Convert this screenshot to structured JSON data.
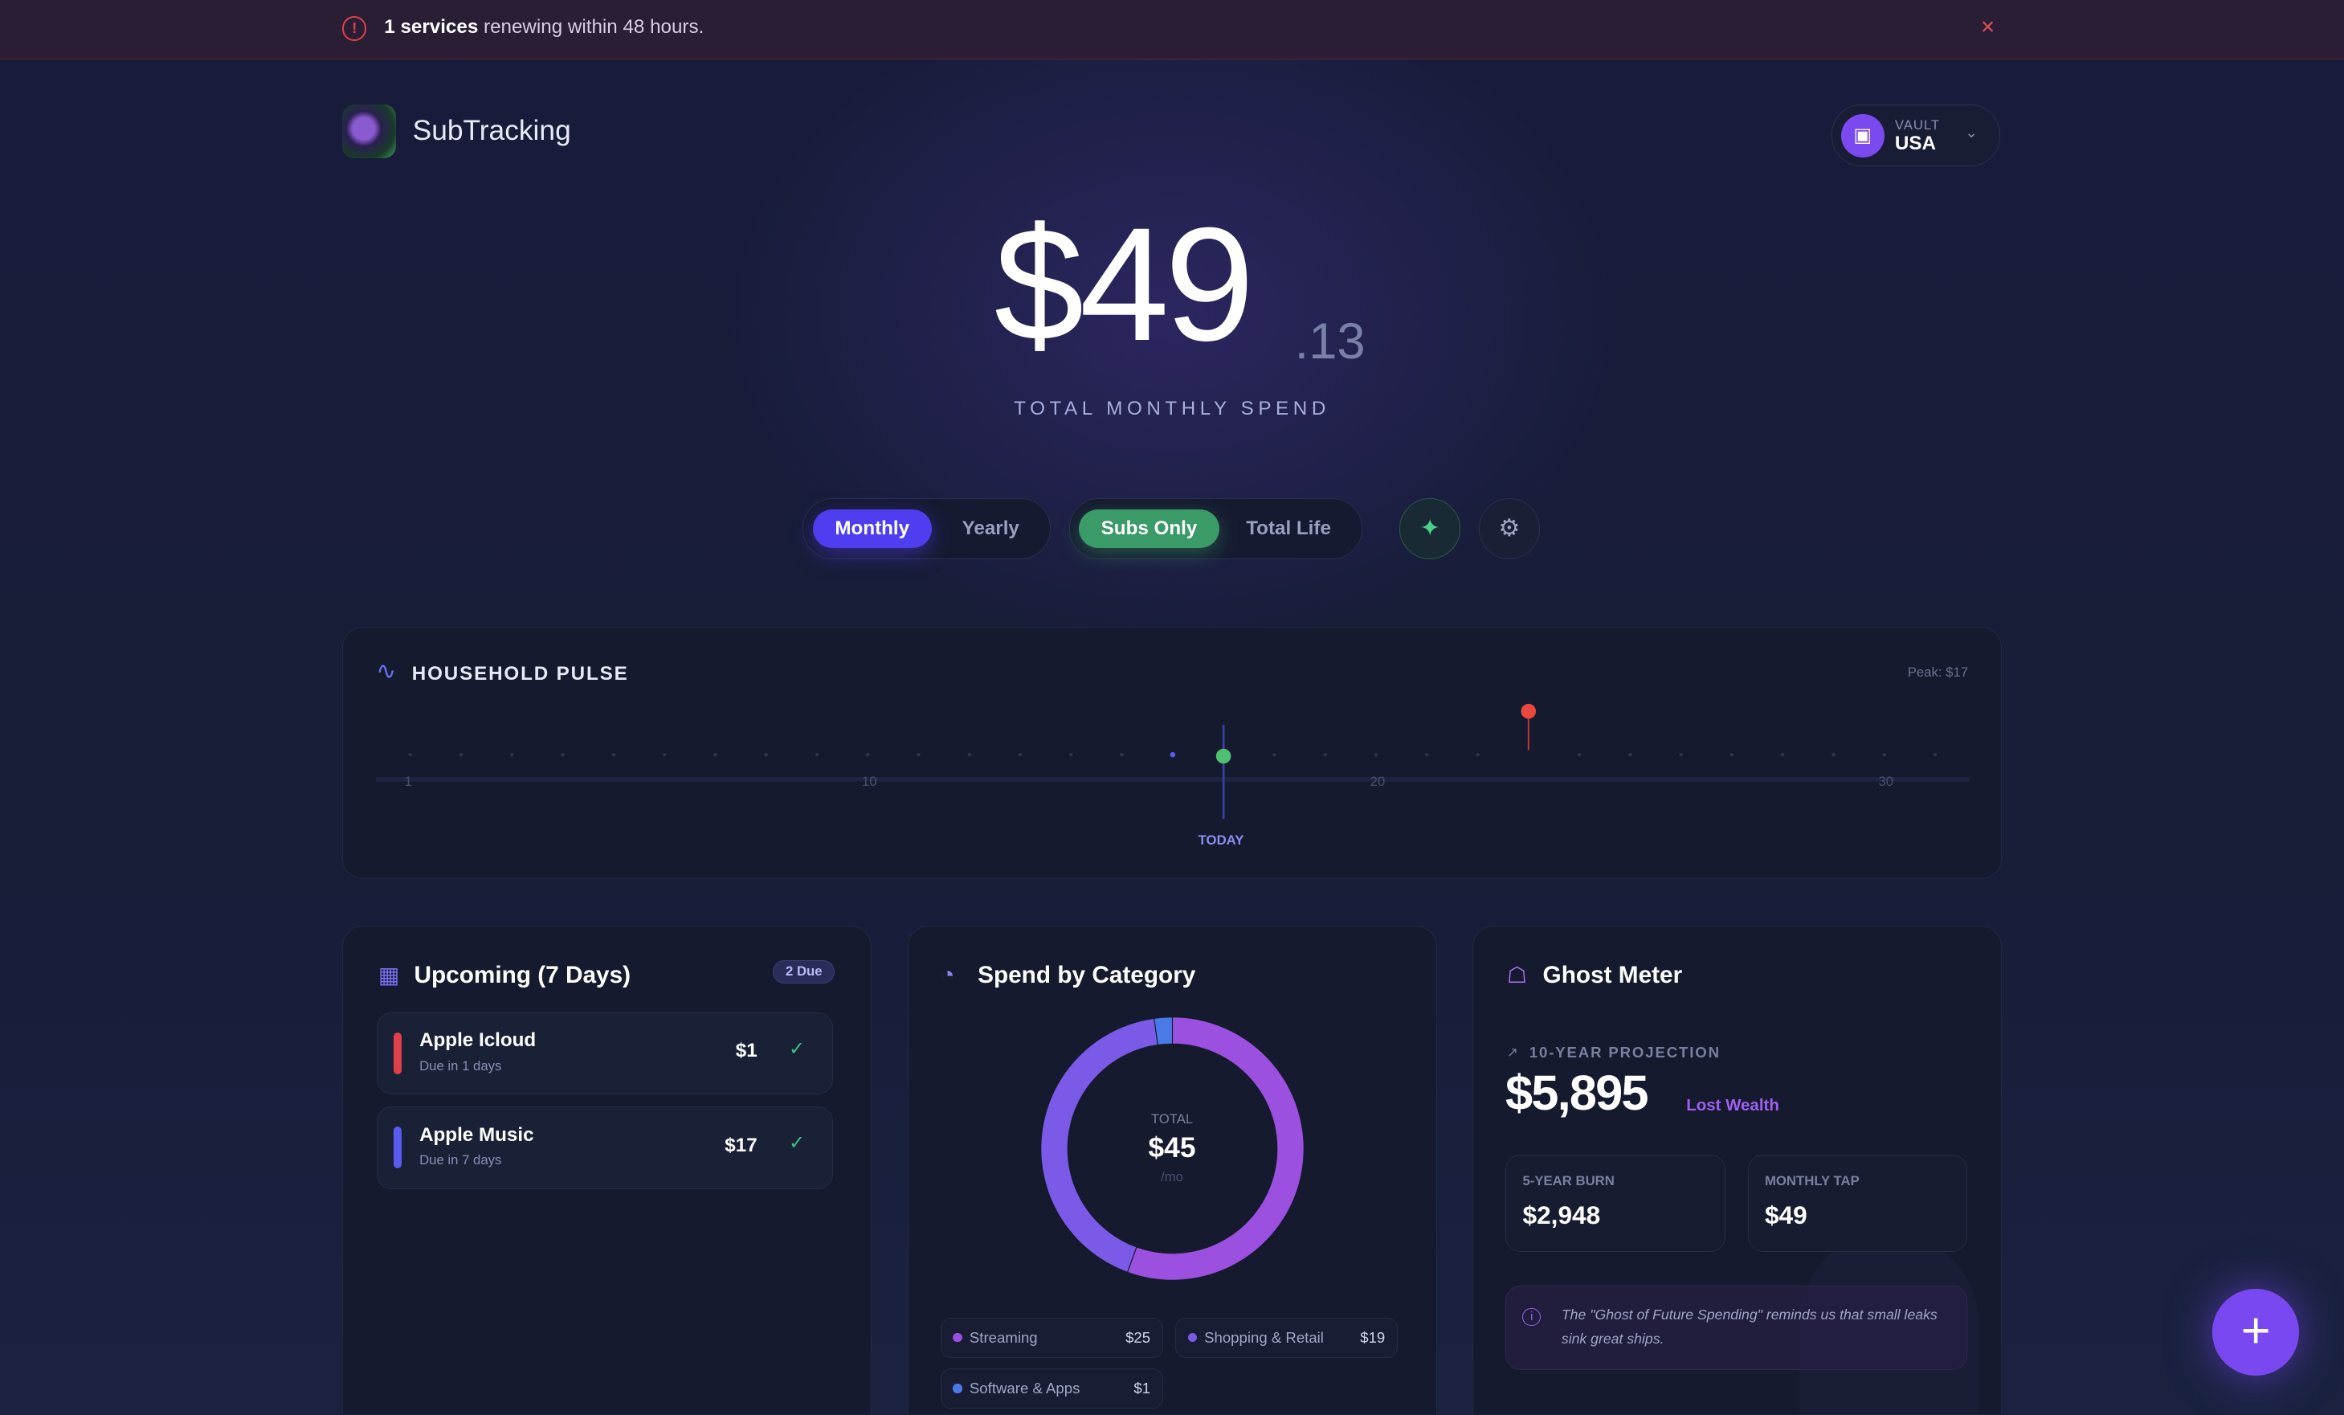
{
  "banner": {
    "icon": "alert-circle-icon",
    "count_text": "1 services",
    "rest_text": " renewing within 48 hours.",
    "close": "×"
  },
  "header": {
    "app_name": "SubTracking",
    "vault_label": "VAULT",
    "vault_value": "USA"
  },
  "hero": {
    "amount": "$49",
    "cents": ".13",
    "label": "TOTAL MONTHLY SPEND"
  },
  "toggles": {
    "period": [
      "Monthly",
      "Yearly"
    ],
    "period_selected": "Monthly",
    "scope": [
      "Subs Only",
      "Total Life"
    ],
    "scope_selected": "Subs Only"
  },
  "colors": {
    "accent": "#4f3df0",
    "green": "#3a9a68",
    "danger": "#e0404a",
    "streaming": "#9b50e0",
    "shopping": "#7a5ae6",
    "software": "#4a7ae8"
  },
  "pulse": {
    "title": "HOUSEHOLD PULSE",
    "peak": "Peak: $17",
    "today_label": "TODAY",
    "days": 31,
    "today": 17,
    "ticks": [
      "1",
      "10",
      "20",
      "30"
    ],
    "tick_days": [
      1,
      10,
      20,
      30
    ],
    "events": [
      {
        "day": 16,
        "type": "minor"
      },
      {
        "day": 17,
        "type": "paid"
      },
      {
        "day": 23,
        "type": "peak",
        "amount": 17
      }
    ]
  },
  "upcoming": {
    "title": "Upcoming (7 Days)",
    "badge": "2 Due",
    "items": [
      {
        "name": "Apple Icloud",
        "due": "Due in 1 days",
        "price": "$1",
        "color": "#e0404a"
      },
      {
        "name": "Apple Music",
        "due": "Due in 7 days",
        "price": "$17",
        "color": "#5a5af0"
      }
    ]
  },
  "category": {
    "title": "Spend by Category",
    "center_label": "TOTAL",
    "center_value": "$45",
    "center_unit": "/mo",
    "items": [
      {
        "name": "Streaming",
        "label": "$25",
        "value": 25,
        "color": "#9b50e0"
      },
      {
        "name": "Shopping & Retail",
        "label": "$19",
        "value": 19,
        "color": "#7a5ae6"
      },
      {
        "name": "Software & Apps",
        "label": "$1",
        "value": 1,
        "color": "#4a7ae8"
      }
    ]
  },
  "ghost": {
    "title": "Ghost Meter",
    "projection_label": "10-YEAR PROJECTION",
    "projection_value": "$5,895",
    "projection_suffix": "Lost Wealth",
    "stats": [
      {
        "label": "5-YEAR BURN",
        "value": "$2,948"
      },
      {
        "label": "MONTHLY TAP",
        "value": "$49"
      }
    ],
    "note": "The \"Ghost of Future Spending\" reminds us that small leaks sink great ships."
  }
}
